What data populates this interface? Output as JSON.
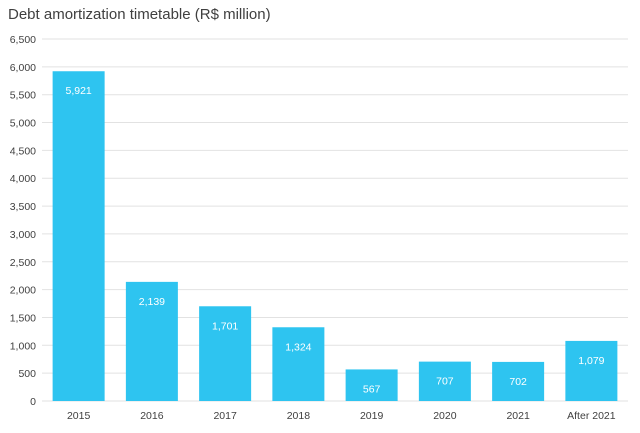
{
  "chart_data": {
    "type": "bar",
    "title": "Debt amortization timetable (R$ million)",
    "categories": [
      "2015",
      "2016",
      "2017",
      "2018",
      "2019",
      "2020",
      "2021",
      "After 2021"
    ],
    "values": [
      5921,
      2139,
      1701,
      1324,
      567,
      707,
      702,
      1079
    ],
    "value_labels": [
      "5,921",
      "2,139",
      "1,701",
      "1,324",
      "567",
      "707",
      "702",
      "1,079"
    ],
    "ylim": [
      0,
      6500
    ],
    "y_ticks": [
      "0",
      "500",
      "1,000",
      "1,500",
      "2,000",
      "2,500",
      "3,000",
      "3,500",
      "4,000",
      "4,500",
      "5,000",
      "5,500",
      "6,000",
      "6,500"
    ],
    "xlabel": "",
    "ylabel": "",
    "grid": true,
    "bar_color": "#2ec4f0",
    "grid_color": "#e2e2e2",
    "text_color": "#404040"
  }
}
